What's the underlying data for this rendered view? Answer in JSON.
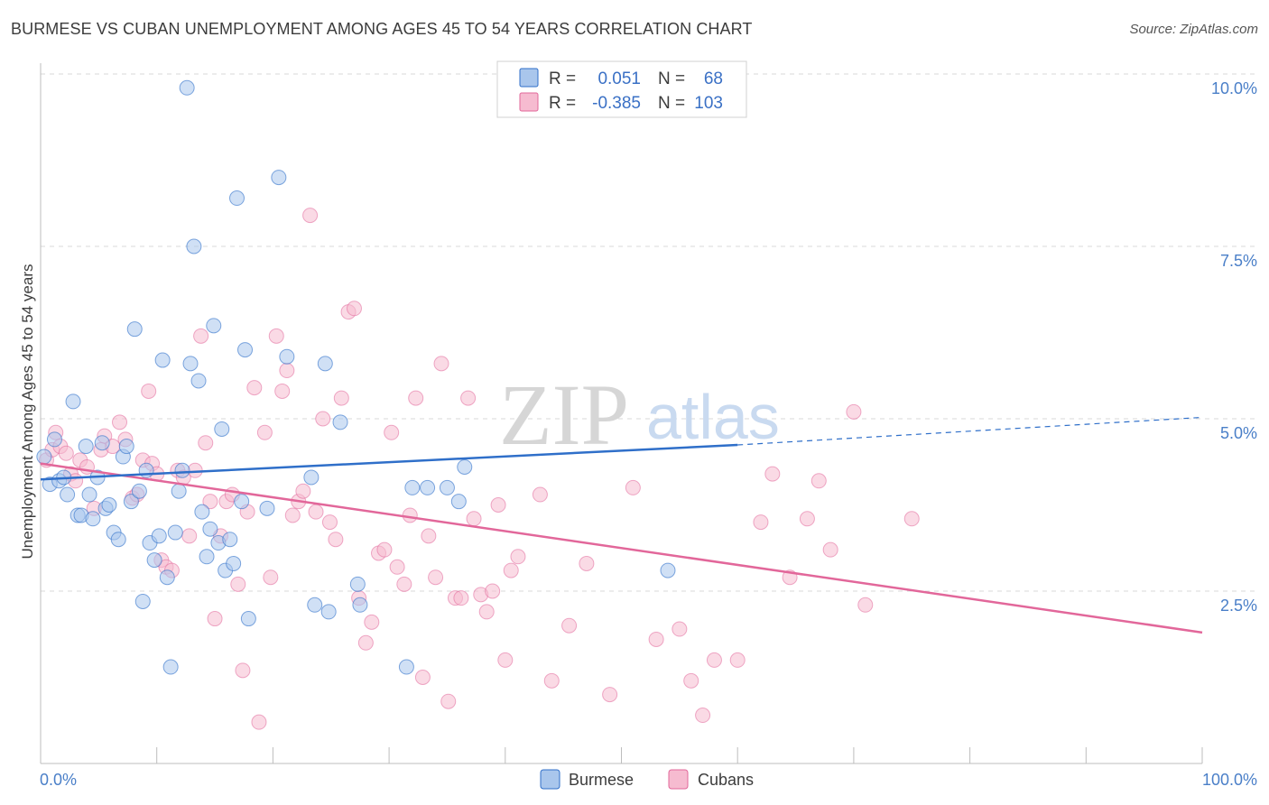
{
  "header": {
    "title": "BURMESE VS CUBAN UNEMPLOYMENT AMONG AGES 45 TO 54 YEARS CORRELATION CHART",
    "source": "Source: ZipAtlas.com"
  },
  "watermark": {
    "zip": "ZIP",
    "atlas": "atlas"
  },
  "colors": {
    "burmese_fill": "#a9c6ec",
    "burmese_line": "#2f6fc9",
    "cubans_fill": "#f6bbd0",
    "cubans_line": "#e2679a",
    "tick_text": "#4a7fc8",
    "grid": "#d9d9d9"
  },
  "legend_box": {
    "rows": [
      {
        "r_label": "R =",
        "r_value": "0.051",
        "n_label": "N =",
        "n_value": "68",
        "series": "burmese"
      },
      {
        "r_label": "R =",
        "r_value": "-0.385",
        "n_label": "N =",
        "n_value": "103",
        "series": "cubans"
      }
    ]
  },
  "bottom_legend": {
    "burmese": "Burmese",
    "cubans": "Cubans"
  },
  "chart_data": {
    "type": "scatter",
    "title": "BURMESE VS CUBAN UNEMPLOYMENT AMONG AGES 45 TO 54 YEARS CORRELATION CHART",
    "xlabel": "",
    "ylabel": "Unemployment Among Ages 45 to 54 years",
    "x_range": [
      0,
      100
    ],
    "y_range": [
      0,
      10.5
    ],
    "x_tick_labels": {
      "left": "0.0%",
      "right": "100.0%"
    },
    "y_ticks": [
      {
        "value": 2.5,
        "label": "2.5%"
      },
      {
        "value": 5.0,
        "label": "5.0%"
      },
      {
        "value": 7.5,
        "label": "7.5%"
      },
      {
        "value": 10.0,
        "label": "10.0%"
      }
    ],
    "grid": true,
    "legend_position": "top-center",
    "series": [
      {
        "name": "Burmese",
        "r": 0.051,
        "n": 68,
        "trend": {
          "x0": 0,
          "y0": 4.12,
          "x1": 60,
          "y1": 4.62,
          "dashed_to_x": 100,
          "dashed_to_y": 5.02
        },
        "points": [
          [
            0.3,
            4.45
          ],
          [
            0.8,
            4.05
          ],
          [
            1.2,
            4.7
          ],
          [
            1.6,
            4.1
          ],
          [
            2.0,
            4.15
          ],
          [
            2.3,
            3.9
          ],
          [
            2.8,
            5.25
          ],
          [
            3.2,
            3.6
          ],
          [
            3.5,
            3.6
          ],
          [
            3.9,
            4.6
          ],
          [
            4.2,
            3.9
          ],
          [
            4.5,
            3.55
          ],
          [
            4.9,
            4.15
          ],
          [
            5.3,
            4.65
          ],
          [
            5.6,
            3.7
          ],
          [
            5.9,
            3.75
          ],
          [
            6.3,
            3.35
          ],
          [
            6.7,
            3.25
          ],
          [
            7.1,
            4.45
          ],
          [
            7.4,
            4.6
          ],
          [
            7.8,
            3.8
          ],
          [
            8.1,
            6.3
          ],
          [
            8.5,
            3.95
          ],
          [
            8.8,
            2.35
          ],
          [
            9.1,
            4.25
          ],
          [
            9.4,
            3.2
          ],
          [
            9.8,
            2.95
          ],
          [
            10.2,
            3.3
          ],
          [
            10.5,
            5.85
          ],
          [
            10.9,
            2.7
          ],
          [
            11.2,
            1.4
          ],
          [
            11.6,
            3.35
          ],
          [
            11.9,
            3.95
          ],
          [
            12.2,
            4.25
          ],
          [
            12.6,
            9.8
          ],
          [
            12.9,
            5.8
          ],
          [
            13.2,
            7.5
          ],
          [
            13.6,
            5.55
          ],
          [
            13.9,
            3.65
          ],
          [
            14.3,
            3.0
          ],
          [
            14.6,
            3.4
          ],
          [
            14.9,
            6.35
          ],
          [
            15.3,
            3.2
          ],
          [
            15.6,
            4.85
          ],
          [
            15.9,
            2.8
          ],
          [
            16.3,
            3.25
          ],
          [
            16.6,
            2.9
          ],
          [
            16.9,
            8.2
          ],
          [
            17.3,
            3.8
          ],
          [
            17.6,
            6.0
          ],
          [
            17.9,
            2.1
          ],
          [
            19.5,
            3.7
          ],
          [
            20.5,
            8.5
          ],
          [
            21.2,
            5.9
          ],
          [
            23.3,
            4.15
          ],
          [
            23.6,
            2.3
          ],
          [
            24.5,
            5.8
          ],
          [
            24.8,
            2.2
          ],
          [
            25.8,
            4.95
          ],
          [
            27.3,
            2.6
          ],
          [
            27.5,
            2.3
          ],
          [
            31.5,
            1.4
          ],
          [
            32.0,
            4.0
          ],
          [
            33.3,
            4.0
          ],
          [
            35.0,
            4.0
          ],
          [
            36.0,
            3.8
          ],
          [
            36.5,
            4.3
          ],
          [
            54.0,
            2.8
          ]
        ]
      },
      {
        "name": "Cubans",
        "r": -0.385,
        "n": 103,
        "trend": {
          "x0": 0,
          "y0": 4.35,
          "x1": 100,
          "y1": 1.9
        },
        "points": [
          [
            0.5,
            4.4
          ],
          [
            1.0,
            4.55
          ],
          [
            1.3,
            4.8
          ],
          [
            1.7,
            4.6
          ],
          [
            2.2,
            4.5
          ],
          [
            2.6,
            4.2
          ],
          [
            3.0,
            4.1
          ],
          [
            3.4,
            4.4
          ],
          [
            4.0,
            4.3
          ],
          [
            4.6,
            3.7
          ],
          [
            5.2,
            4.55
          ],
          [
            5.5,
            4.75
          ],
          [
            6.2,
            4.6
          ],
          [
            6.8,
            4.95
          ],
          [
            7.3,
            4.7
          ],
          [
            7.9,
            3.85
          ],
          [
            8.3,
            3.9
          ],
          [
            8.8,
            4.4
          ],
          [
            9.3,
            5.4
          ],
          [
            9.6,
            4.35
          ],
          [
            10.0,
            4.2
          ],
          [
            10.4,
            2.95
          ],
          [
            10.8,
            2.85
          ],
          [
            11.3,
            2.8
          ],
          [
            11.8,
            4.25
          ],
          [
            12.3,
            4.15
          ],
          [
            12.8,
            3.3
          ],
          [
            13.3,
            4.25
          ],
          [
            13.8,
            6.2
          ],
          [
            14.2,
            4.65
          ],
          [
            14.6,
            3.8
          ],
          [
            15.0,
            2.1
          ],
          [
            15.5,
            3.3
          ],
          [
            16.0,
            3.8
          ],
          [
            16.5,
            3.9
          ],
          [
            17.0,
            2.6
          ],
          [
            17.4,
            1.35
          ],
          [
            17.8,
            3.65
          ],
          [
            18.4,
            5.45
          ],
          [
            18.8,
            0.6
          ],
          [
            19.3,
            4.8
          ],
          [
            19.8,
            2.7
          ],
          [
            20.3,
            6.2
          ],
          [
            20.8,
            5.4
          ],
          [
            21.2,
            5.7
          ],
          [
            21.7,
            3.6
          ],
          [
            22.2,
            3.8
          ],
          [
            22.6,
            3.95
          ],
          [
            23.2,
            7.95
          ],
          [
            23.7,
            3.65
          ],
          [
            24.3,
            5.0
          ],
          [
            24.9,
            3.5
          ],
          [
            25.4,
            3.25
          ],
          [
            25.9,
            5.3
          ],
          [
            26.5,
            6.55
          ],
          [
            27.0,
            6.6
          ],
          [
            27.4,
            2.4
          ],
          [
            28.0,
            1.75
          ],
          [
            28.5,
            2.05
          ],
          [
            29.1,
            3.05
          ],
          [
            29.6,
            3.1
          ],
          [
            30.2,
            4.8
          ],
          [
            30.7,
            2.85
          ],
          [
            31.3,
            2.6
          ],
          [
            31.8,
            3.6
          ],
          [
            32.3,
            5.3
          ],
          [
            32.9,
            1.25
          ],
          [
            33.4,
            3.3
          ],
          [
            34.0,
            2.7
          ],
          [
            34.5,
            5.8
          ],
          [
            35.1,
            0.9
          ],
          [
            35.7,
            2.4
          ],
          [
            36.2,
            2.4
          ],
          [
            36.8,
            5.3
          ],
          [
            37.3,
            3.55
          ],
          [
            37.9,
            2.45
          ],
          [
            38.4,
            2.2
          ],
          [
            38.9,
            2.5
          ],
          [
            39.4,
            3.75
          ],
          [
            40.0,
            1.5
          ],
          [
            40.5,
            2.8
          ],
          [
            41.1,
            3.0
          ],
          [
            43.0,
            3.9
          ],
          [
            44.0,
            1.2
          ],
          [
            45.5,
            2.0
          ],
          [
            47.0,
            2.9
          ],
          [
            49.0,
            1.0
          ],
          [
            51.0,
            4.0
          ],
          [
            53.0,
            1.8
          ],
          [
            55.0,
            1.95
          ],
          [
            56.0,
            1.2
          ],
          [
            57.0,
            0.7
          ],
          [
            58.0,
            1.5
          ],
          [
            60.0,
            1.5
          ],
          [
            62.0,
            3.5
          ],
          [
            63.0,
            4.2
          ],
          [
            64.5,
            2.7
          ],
          [
            66.0,
            3.55
          ],
          [
            67.0,
            4.1
          ],
          [
            68.0,
            3.1
          ],
          [
            70.0,
            5.1
          ],
          [
            71.0,
            2.3
          ],
          [
            75.0,
            3.55
          ]
        ]
      }
    ]
  }
}
